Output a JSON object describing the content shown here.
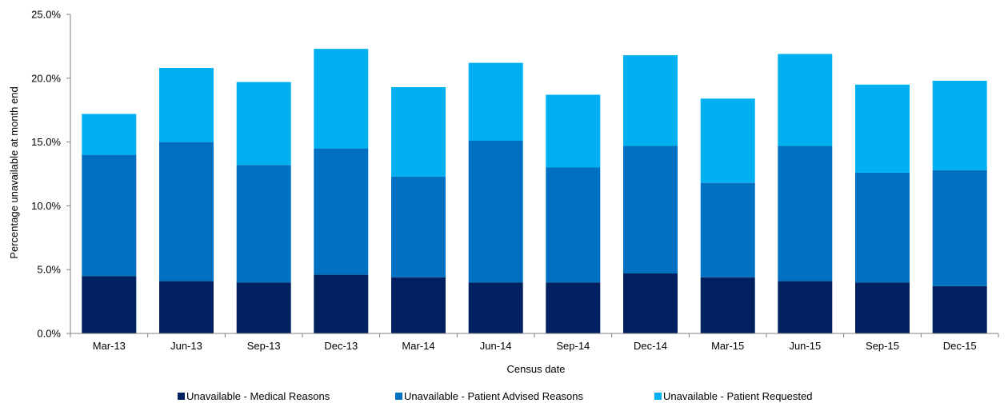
{
  "chart_data": {
    "type": "bar",
    "stacked": true,
    "title": "",
    "xlabel": "Census date",
    "ylabel": "Percentage unavailable at month end",
    "ylim": [
      0,
      25
    ],
    "yticks": [
      "0.0%",
      "5.0%",
      "10.0%",
      "15.0%",
      "20.0%",
      "25.0%"
    ],
    "grid": false,
    "legend_position": "bottom",
    "categories": [
      "Mar-13",
      "Jun-13",
      "Sep-13",
      "Dec-13",
      "Mar-14",
      "Jun-14",
      "Sep-14",
      "Dec-14",
      "Mar-15",
      "Jun-15",
      "Sep-15",
      "Dec-15"
    ],
    "series": [
      {
        "name": "Unavailable - Medical Reasons",
        "color": "#002060",
        "values": [
          4.5,
          4.1,
          4.0,
          4.6,
          4.4,
          4.0,
          4.0,
          4.7,
          4.4,
          4.1,
          4.0,
          3.7
        ]
      },
      {
        "name": "Unavailable - Patient Advised Reasons",
        "color": "#0070C0",
        "values": [
          9.5,
          10.9,
          9.2,
          9.9,
          7.9,
          11.1,
          9.0,
          10.0,
          7.4,
          10.6,
          8.6,
          9.1
        ]
      },
      {
        "name": "Unavailable - Patient Requested",
        "color": "#00B0F0",
        "values": [
          3.2,
          5.8,
          6.5,
          7.8,
          7.0,
          6.1,
          5.7,
          7.1,
          6.6,
          7.2,
          6.9,
          7.0
        ]
      }
    ]
  }
}
